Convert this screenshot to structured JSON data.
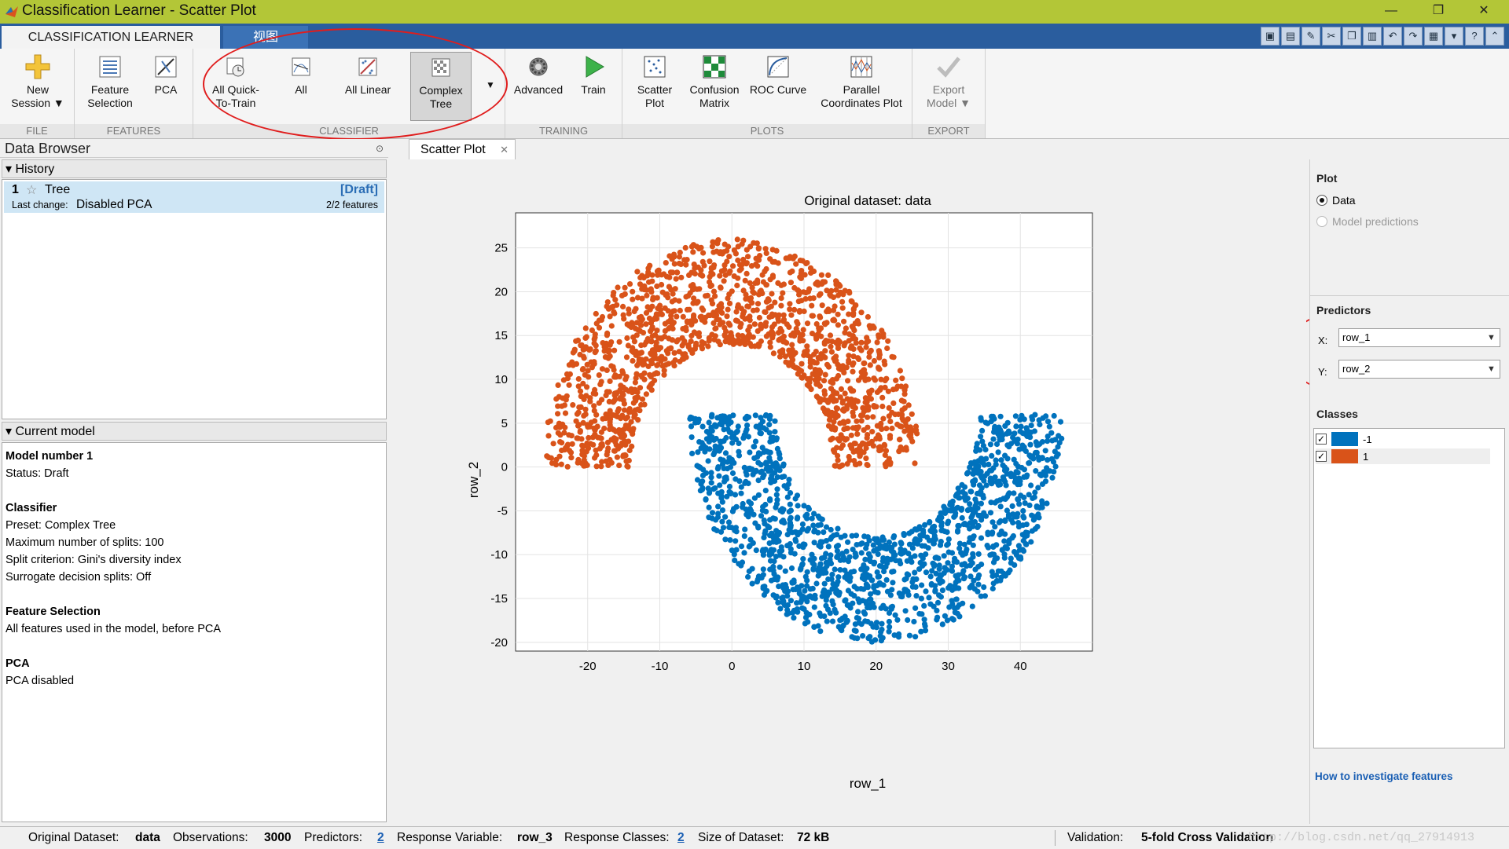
{
  "window": {
    "title": "Classification Learner - Scatter Plot",
    "minimize": "—",
    "restore": "❐",
    "close": "✕"
  },
  "tabs": [
    {
      "label": "CLASSIFICATION LEARNER"
    },
    {
      "label": "视图"
    }
  ],
  "ribbon": {
    "groups": {
      "file": "FILE",
      "features": "FEATURES",
      "classifier": "CLASSIFIER",
      "training": "TRAINING",
      "plots": "PLOTS",
      "export": "EXPORT"
    },
    "new_session": [
      "New",
      "Session ▼"
    ],
    "feature_selection": [
      "Feature",
      "Selection"
    ],
    "pca": "PCA",
    "all_quick": [
      "All Quick-",
      "To-Train"
    ],
    "all": "All",
    "all_linear": "All Linear",
    "complex_tree": [
      "Complex",
      "Tree"
    ],
    "advanced": "Advanced",
    "train": "Train",
    "scatter_plot": [
      "Scatter",
      "Plot"
    ],
    "confusion_matrix": [
      "Confusion",
      "Matrix"
    ],
    "roc_curve": "ROC Curve",
    "parallel": [
      "Parallel",
      "Coordinates Plot"
    ],
    "export_model": [
      "Export",
      "Model ▼"
    ]
  },
  "data_browser": {
    "title": "Data Browser",
    "history_header": "History",
    "history_item": {
      "number": "1",
      "star": "☆",
      "name": "Tree",
      "status": "[Draft]",
      "last_change_label": "Last change:",
      "last_change": "Disabled PCA",
      "features": "2/2 features"
    },
    "current_model_header": "Current model",
    "current_model": {
      "model_number": "Model number 1",
      "status": "Status: Draft",
      "classifier_title": "Classifier",
      "preset": "Preset: Complex Tree",
      "max_splits": "Maximum number of splits: 100",
      "split_criterion": "Split criterion: Gini's diversity index",
      "surrogate": "Surrogate decision splits: Off",
      "feature_selection_title": "Feature Selection",
      "feature_selection_text": "All features used in the model, before PCA",
      "pca_title": "PCA",
      "pca_text": "PCA disabled"
    }
  },
  "plot_tab": {
    "label": "Scatter Plot",
    "close": "✕"
  },
  "chart_data": {
    "type": "scatter",
    "title": "Original dataset: data",
    "xlabel": "row_1",
    "ylabel": "row_2",
    "xlim": [
      -30,
      50
    ],
    "ylim": [
      -21,
      29
    ],
    "xticks": [
      -20,
      -10,
      0,
      10,
      20,
      30,
      40
    ],
    "yticks": [
      -20,
      -15,
      -10,
      -5,
      0,
      5,
      10,
      15,
      20,
      25
    ],
    "grid": true,
    "series": [
      {
        "name": "-1",
        "color": "#0072bd",
        "shape": "lower half-ring",
        "center": [
          20,
          6
        ],
        "inner_radius": 14,
        "outer_radius": 26,
        "angle_range_deg": [
          180,
          360
        ],
        "count": 1500
      },
      {
        "name": "1",
        "color": "#d95319",
        "shape": "upper half-ring",
        "center": [
          0,
          0
        ],
        "inner_radius": 14,
        "outer_radius": 26,
        "angle_range_deg": [
          0,
          180
        ],
        "count": 1500
      }
    ]
  },
  "right_panel": {
    "plot_title": "Plot",
    "opt_data": "Data",
    "opt_predictions": "Model predictions",
    "predictors_title": "Predictors",
    "x_label": "X:",
    "x_value": "row_1",
    "y_label": "Y:",
    "y_value": "row_2",
    "classes_title": "Classes",
    "classes": [
      {
        "label": "-1",
        "color": "#0072bd"
      },
      {
        "label": "1",
        "color": "#d95319"
      }
    ],
    "link": "How to investigate features"
  },
  "status": {
    "dataset_label": "Original Dataset:",
    "dataset": "data",
    "obs_label": "Observations:",
    "obs": "3000",
    "pred_label": "Predictors:",
    "pred": "2",
    "resp_label": "Response Variable:",
    "resp": "row_3",
    "classes_label": "Response Classes:",
    "classes": "2",
    "size_label": "Size of Dataset:",
    "size": "72 kB",
    "val_label": "Validation:",
    "val": "5-fold Cross Validation"
  },
  "watermark": "http://blog.csdn.net/qq_27914913"
}
